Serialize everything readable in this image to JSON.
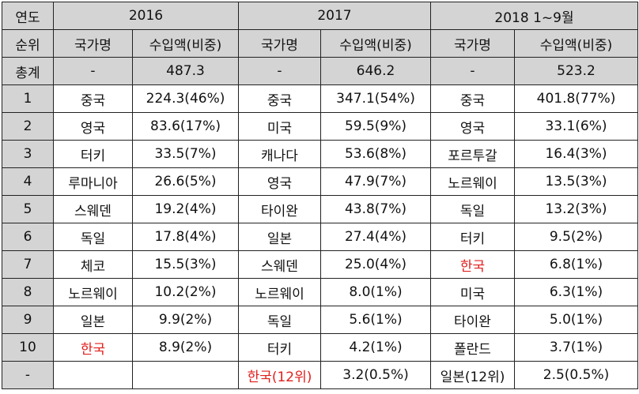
{
  "colors": {
    "header_bg": "#d4d4d4",
    "highlight": "#e0201e",
    "border": "#222222"
  },
  "header": {
    "corner": "연도",
    "years": [
      "2016",
      "2017",
      "2018  1~9월"
    ]
  },
  "subheader": {
    "rank_label": "순위",
    "country_label": "국가명",
    "amount_label": "수입액(비중)"
  },
  "total": {
    "label": "총계",
    "cells": [
      {
        "country": "-",
        "amount": "487.3"
      },
      {
        "country": "-",
        "amount": "646.2"
      },
      {
        "country": "-",
        "amount": "523.2"
      }
    ]
  },
  "rows": [
    {
      "rank": "1",
      "cells": [
        {
          "country": "중국",
          "amount": "224.3(46%)",
          "highlight": false
        },
        {
          "country": "중국",
          "amount": "347.1(54%)",
          "highlight": false
        },
        {
          "country": "중국",
          "amount": "401.8(77%)",
          "highlight": false
        }
      ]
    },
    {
      "rank": "2",
      "cells": [
        {
          "country": "영국",
          "amount": "83.6(17%)",
          "highlight": false
        },
        {
          "country": "미국",
          "amount": "59.5(9%)",
          "highlight": false
        },
        {
          "country": "영국",
          "amount": "33.1(6%)",
          "highlight": false
        }
      ]
    },
    {
      "rank": "3",
      "cells": [
        {
          "country": "터키",
          "amount": "33.5(7%)",
          "highlight": false
        },
        {
          "country": "캐나다",
          "amount": "53.6(8%)",
          "highlight": false
        },
        {
          "country": "포르투갈",
          "amount": "16.4(3%)",
          "highlight": false
        }
      ]
    },
    {
      "rank": "4",
      "cells": [
        {
          "country": "루마니아",
          "amount": "26.6(5%)",
          "highlight": false
        },
        {
          "country": "영국",
          "amount": "47.9(7%)",
          "highlight": false
        },
        {
          "country": "노르웨이",
          "amount": "13.5(3%)",
          "highlight": false
        }
      ]
    },
    {
      "rank": "5",
      "cells": [
        {
          "country": "스웨덴",
          "amount": "19.2(4%)",
          "highlight": false
        },
        {
          "country": "타이완",
          "amount": "43.8(7%)",
          "highlight": false
        },
        {
          "country": "독일",
          "amount": "13.2(3%)",
          "highlight": false
        }
      ]
    },
    {
      "rank": "6",
      "cells": [
        {
          "country": "독일",
          "amount": "17.8(4%)",
          "highlight": false
        },
        {
          "country": "일본",
          "amount": "27.4(4%)",
          "highlight": false
        },
        {
          "country": "터키",
          "amount": "9.5(2%)",
          "highlight": false
        }
      ]
    },
    {
      "rank": "7",
      "cells": [
        {
          "country": "체코",
          "amount": "15.5(3%)",
          "highlight": false
        },
        {
          "country": "스웨덴",
          "amount": "25.0(4%)",
          "highlight": false
        },
        {
          "country": "한국",
          "amount": "6.8(1%)",
          "highlight": true
        }
      ]
    },
    {
      "rank": "8",
      "cells": [
        {
          "country": "노르웨이",
          "amount": "10.2(2%)",
          "highlight": false
        },
        {
          "country": "노르웨이",
          "amount": "8.0(1%)",
          "highlight": false
        },
        {
          "country": "미국",
          "amount": "6.3(1%)",
          "highlight": false
        }
      ]
    },
    {
      "rank": "9",
      "cells": [
        {
          "country": "일본",
          "amount": "9.9(2%)",
          "highlight": false
        },
        {
          "country": "독일",
          "amount": "5.6(1%)",
          "highlight": false
        },
        {
          "country": "타이완",
          "amount": "5.0(1%)",
          "highlight": false
        }
      ]
    },
    {
      "rank": "10",
      "cells": [
        {
          "country": "한국",
          "amount": "8.9(2%)",
          "highlight": true
        },
        {
          "country": "터키",
          "amount": "4.2(1%)",
          "highlight": false
        },
        {
          "country": "폴란드",
          "amount": "3.7(1%)",
          "highlight": false
        }
      ]
    },
    {
      "rank": "-",
      "cells": [
        {
          "country": "",
          "amount": "",
          "highlight": false
        },
        {
          "country": "한국(12위)",
          "amount": "3.2(0.5%)",
          "highlight": true
        },
        {
          "country": "일본(12위)",
          "amount": "2.5(0.5%)",
          "highlight": false
        }
      ]
    }
  ]
}
